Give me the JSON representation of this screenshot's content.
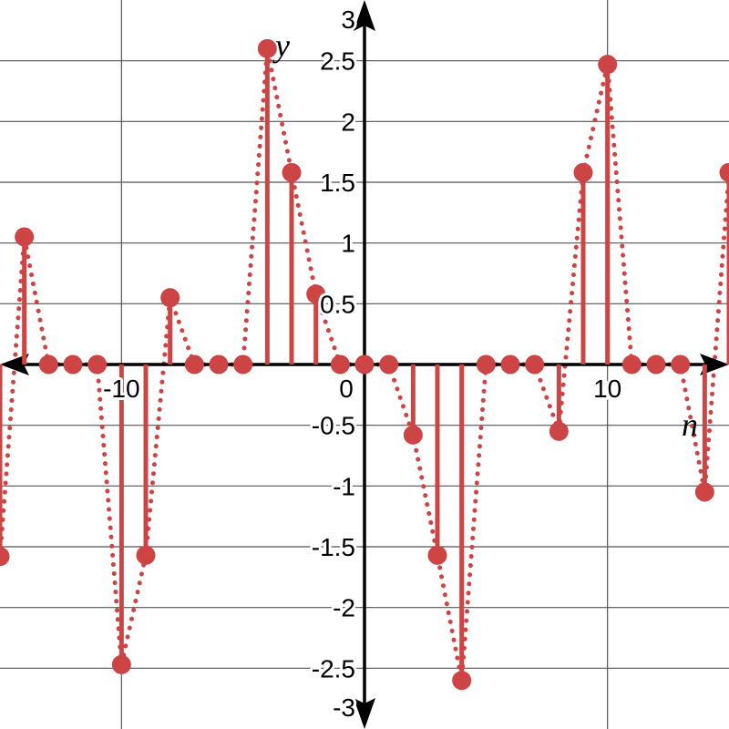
{
  "chart_data": {
    "type": "stem",
    "xlabel": "n",
    "ylabel": "y",
    "xlim": [
      -15,
      15
    ],
    "ylim": [
      -3,
      3
    ],
    "x_gridlines": [
      -10,
      10
    ],
    "y_gridlines": [
      -2.5,
      -2,
      -1.5,
      -1,
      -0.5,
      0.5,
      1,
      1.5,
      2,
      2.5
    ],
    "x_tick_labels": [
      "-10",
      "0",
      "10"
    ],
    "y_tick_labels": [
      "-3",
      "-2.5",
      "-2",
      "-1.5",
      "-1",
      "-0.5",
      "0.5",
      "1",
      "1.5",
      "2",
      "2.5",
      "3"
    ],
    "color": "#cc4444",
    "series": [
      {
        "x": [
          -15,
          -14,
          -13,
          -12,
          -11,
          -10,
          -9,
          -8,
          -7,
          -6,
          -5,
          -4,
          -3,
          -2,
          -1,
          0,
          1,
          2,
          3,
          4,
          5,
          6,
          7,
          8,
          9,
          10,
          11,
          12,
          13,
          14,
          15
        ],
        "values": [
          -1.58,
          1.05,
          0,
          0,
          0,
          -2.47,
          -1.57,
          0.55,
          0,
          0,
          0,
          2.6,
          1.58,
          0.58,
          0,
          0,
          0,
          -0.58,
          -1.57,
          -2.6,
          0,
          0,
          0,
          -0.55,
          1.58,
          2.47,
          0,
          0,
          0,
          -1.05,
          1.58
        ]
      }
    ]
  }
}
